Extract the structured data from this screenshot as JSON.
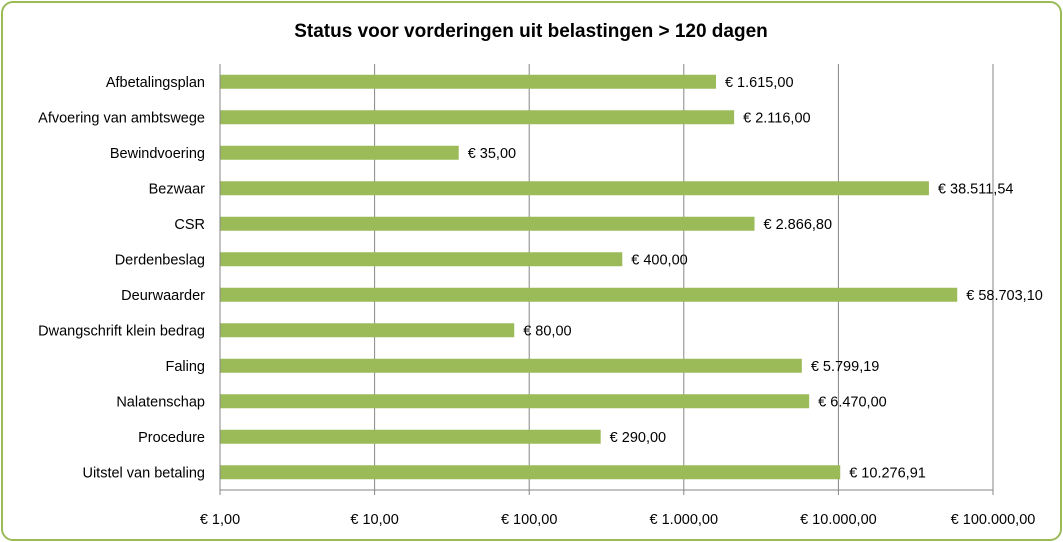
{
  "chart_data": {
    "type": "bar",
    "orientation": "horizontal",
    "title": "Status voor vorderingen uit belastingen > 120 dagen",
    "xscale": "log",
    "xlim": [
      1,
      100000
    ],
    "grid": true,
    "legend": "none",
    "bar_color": "#9bbb59",
    "categories": [
      "Afbetalingsplan",
      "Afvoering van ambtswege",
      "Bewindvoering",
      "Bezwaar",
      "CSR",
      "Derdenbeslag",
      "Deurwaarder",
      "Dwangschrift klein bedrag",
      "Faling",
      "Nalatenschap",
      "Procedure",
      "Uitstel van betaling"
    ],
    "values": [
      1615.0,
      2116.0,
      35.0,
      38511.54,
      2866.8,
      400.0,
      58703.1,
      80.0,
      5799.19,
      6470.0,
      290.0,
      10276.91
    ],
    "data_labels": [
      "€ 1.615,00",
      "€ 2.116,00",
      "€ 35,00",
      "€ 38.511,54",
      "€ 2.866,80",
      "€ 400,00",
      "€ 58.703,10",
      "€ 80,00",
      "€ 5.799,19",
      "€ 6.470,00",
      "€ 290,00",
      "€ 10.276,91"
    ],
    "tick_values": [
      1,
      10,
      100,
      1000,
      10000,
      100000
    ],
    "tick_labels": [
      "€ 1,00",
      "€ 10,00",
      "€ 100,00",
      "€ 1.000,00",
      "€ 10.000,00",
      "€ 100.000,00"
    ]
  }
}
